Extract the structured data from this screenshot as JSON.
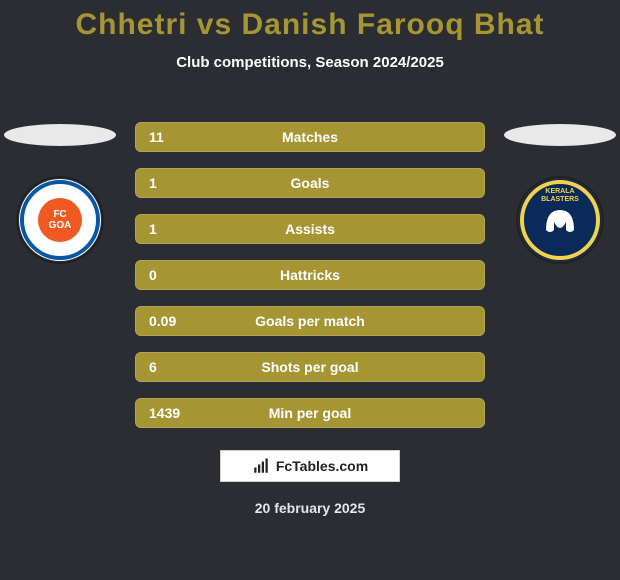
{
  "title": {
    "text": "Chhetri vs Danish Farooq Bhat",
    "color": "#a59633",
    "fontsize": 30
  },
  "subtitle": {
    "text": "Club competitions, Season 2024/2025",
    "color": "#ffffff",
    "fontsize": 15
  },
  "background_color": "#2b2d32",
  "bar_color": "#a59633",
  "bar_text_color": "#ffffff",
  "bars": [
    {
      "label": "Matches",
      "value": "11"
    },
    {
      "label": "Goals",
      "value": "1"
    },
    {
      "label": "Assists",
      "value": "1"
    },
    {
      "label": "Hattricks",
      "value": "0"
    },
    {
      "label": "Goals per match",
      "value": "0.09"
    },
    {
      "label": "Shots per goal",
      "value": "6"
    },
    {
      "label": "Min per goal",
      "value": "1439"
    }
  ],
  "left_club": {
    "name": "FC Goa",
    "bg": "#ffffff",
    "ring": "#0857a4",
    "accent": "#f05a22",
    "text": "FC\nGOA"
  },
  "right_club": {
    "name": "Kerala Blasters",
    "bg": "#0a2a5a",
    "ring": "#f3d24b",
    "accent": "#ffffff",
    "text": "KERALA\nBLASTERS"
  },
  "watermark": "FcTables.com",
  "date": "20 february 2025"
}
